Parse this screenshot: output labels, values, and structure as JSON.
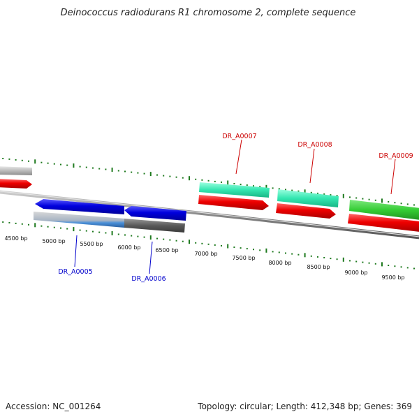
{
  "title": "Deinococcus radiodurans R1 chromosome 2, complete sequence",
  "footer": {
    "accession": "Accession: NC_001264",
    "summary": "Topology: circular; Length: 412,348 bp; Genes: 369"
  },
  "colors": {
    "background": "#ffffff",
    "backbone": "#8a8a8a",
    "tick": "#1f7a1f",
    "label_forward": "#cc0000",
    "label_reverse": "#0000cc"
  },
  "ruler": {
    "ticks": [
      {
        "label": "4500 bp"
      },
      {
        "label": "5000 bp"
      },
      {
        "label": "5500 bp"
      },
      {
        "label": "6000 bp"
      },
      {
        "label": "6500 bp"
      },
      {
        "label": "7000 bp"
      },
      {
        "label": "7500 bp"
      },
      {
        "label": "8000 bp"
      },
      {
        "label": "8500 bp"
      },
      {
        "label": "9000 bp"
      },
      {
        "label": "9500 bp"
      }
    ]
  },
  "genes": [
    {
      "id": "DR_A0005",
      "strand": "reverse",
      "label_color": "#0000cc"
    },
    {
      "id": "DR_A0006",
      "strand": "reverse",
      "label_color": "#0000cc"
    },
    {
      "id": "DR_A0007",
      "strand": "forward",
      "label_color": "#cc0000"
    },
    {
      "id": "DR_A0008",
      "strand": "forward",
      "label_color": "#cc0000"
    },
    {
      "id": "DR_A0009",
      "strand": "forward",
      "label_color": "#cc0000"
    }
  ],
  "feature_colors": {
    "cds_forward": "#ee0000",
    "cds_reverse": "#0000dd",
    "gene_teal": "#33e6b0",
    "gene_green": "#33cc33",
    "gene_gray": "#bbbbbb",
    "gene_dark_gray": "#555555",
    "gene_blue_light": "#4a90d9"
  }
}
